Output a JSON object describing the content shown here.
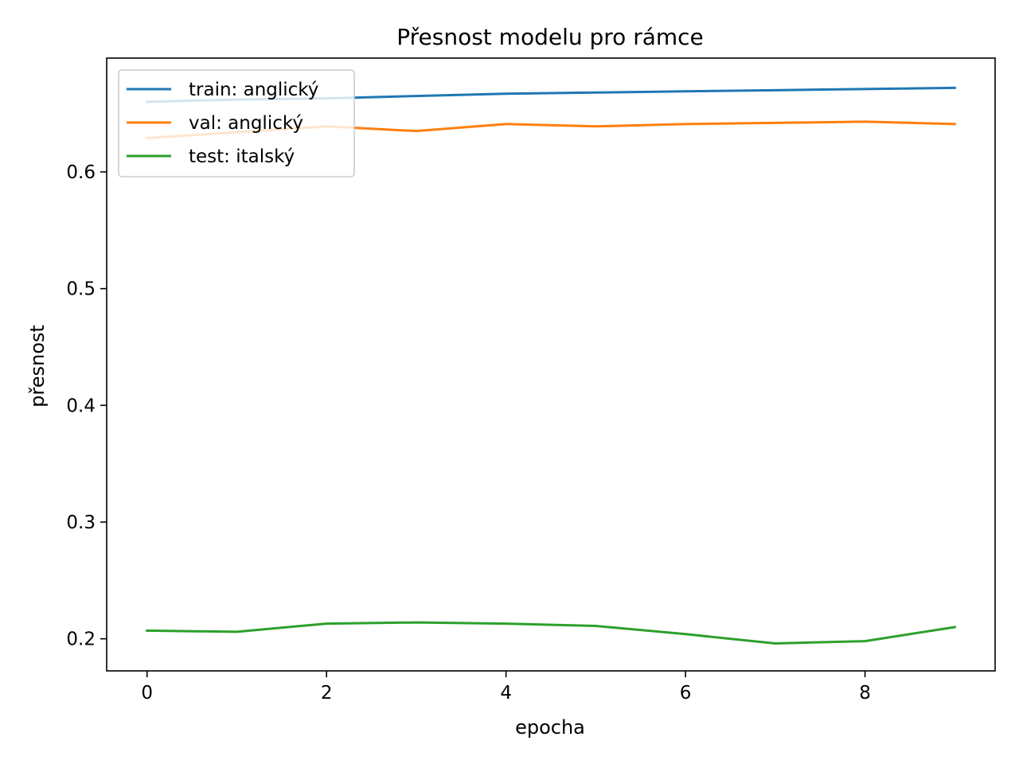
{
  "chart_data": {
    "type": "line",
    "title": "Přesnost modelu pro rámce",
    "xlabel": "epocha",
    "ylabel": "přesnost",
    "xlim": [
      -0.45,
      9.45
    ],
    "ylim": [
      0.1725,
      0.6975
    ],
    "x_ticks": [
      0,
      2,
      4,
      6,
      8
    ],
    "y_ticks": [
      0.2,
      0.3,
      0.4,
      0.5,
      0.6
    ],
    "x_tick_labels": [
      "0",
      "2",
      "4",
      "6",
      "8"
    ],
    "y_tick_labels": [
      "0.2",
      "0.3",
      "0.4",
      "0.5",
      "0.6"
    ],
    "grid": false,
    "legend_position": "top-left",
    "x": [
      0,
      1,
      2,
      3,
      4,
      5,
      6,
      7,
      8,
      9
    ],
    "series": [
      {
        "name": "train: anglický",
        "color": "#1f77b4",
        "values": [
          0.66,
          0.662,
          0.663,
          0.665,
          0.667,
          0.668,
          0.669,
          0.67,
          0.671,
          0.672
        ]
      },
      {
        "name": "val: anglický",
        "color": "#ff7f0e",
        "values": [
          0.629,
          0.634,
          0.639,
          0.635,
          0.641,
          0.639,
          0.641,
          0.642,
          0.643,
          0.641
        ]
      },
      {
        "name": "test: italský",
        "color": "#2ca02c",
        "values": [
          0.207,
          0.206,
          0.213,
          0.214,
          0.213,
          0.211,
          0.204,
          0.196,
          0.198,
          0.21
        ]
      }
    ]
  }
}
